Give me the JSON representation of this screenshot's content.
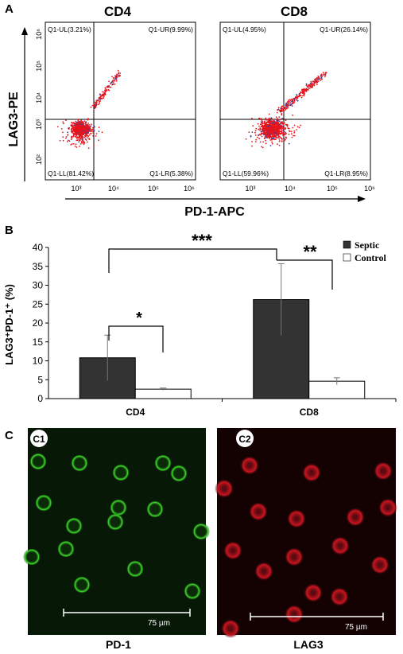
{
  "panel_a": {
    "label": "A",
    "y_axis_label": "LAG3-PE",
    "x_axis_label": "PD-1-APC",
    "tick_labels": [
      "10³",
      "10⁴",
      "10⁵",
      "10⁶"
    ],
    "y_tick_labels": [
      "10⁶",
      "10⁵",
      "10⁴",
      "10³",
      "10²"
    ],
    "plots": [
      {
        "title": "CD4",
        "ul": "Q1-UL(3.21%)",
        "ur": "Q1-UR(9.99%)",
        "ll": "Q1-LL(81.42%)",
        "lr": "Q1-LR(5.38%)"
      },
      {
        "title": "CD8",
        "ul": "Q1-UL(4.95%)",
        "ur": "Q1-UR(26.14%)",
        "ll": "Q1-LL(59.96%)",
        "lr": "Q1-LR(8.95%)"
      }
    ]
  },
  "panel_b": {
    "label": "B",
    "sig_labels": [
      "*",
      "***",
      "**"
    ],
    "legend": {
      "septic": "Septic",
      "control": "Control"
    }
  },
  "panel_c": {
    "label": "C",
    "images": [
      {
        "badge": "C1",
        "caption": "PD-1",
        "scale": "75 µm",
        "color": "#3ddc2a"
      },
      {
        "badge": "C2",
        "caption": "LAG3",
        "scale": "75 µm",
        "color": "#c8141e"
      }
    ]
  },
  "chart_data": {
    "type": "bar",
    "categories": [
      "CD4",
      "CD8"
    ],
    "ylabel": "LAG3⁺PD-1⁺ (%)",
    "ylim": [
      0,
      40
    ],
    "yticks": [
      0,
      5,
      10,
      15,
      20,
      25,
      30,
      35,
      40
    ],
    "series": [
      {
        "name": "Septic",
        "values": [
          10.8,
          26.2
        ],
        "errors": [
          6.0,
          9.5
        ],
        "color": "#333333"
      },
      {
        "name": "Control",
        "values": [
          2.5,
          4.6
        ],
        "errors": [
          0.3,
          0.9
        ],
        "color": "#ffffff"
      }
    ]
  }
}
